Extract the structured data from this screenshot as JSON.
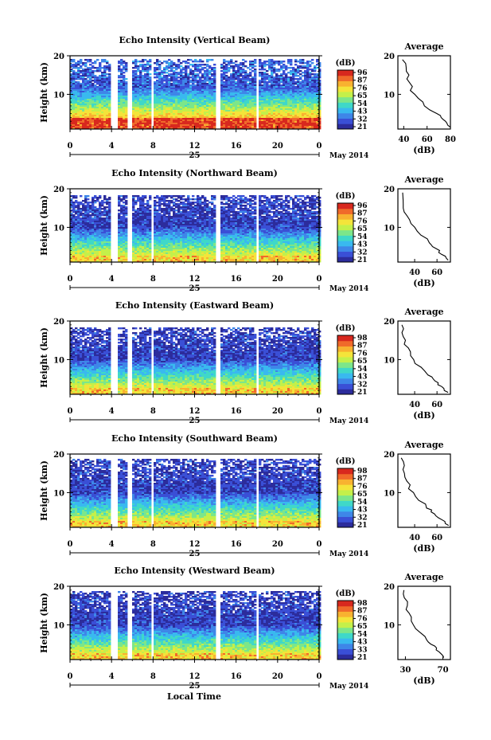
{
  "figure": {
    "x_axis_title": "Local Time",
    "date_label": "May 2014",
    "day_label": "25",
    "height_label": "Height (km)",
    "avg_title": "Average",
    "avg_xlabel": "(dB)",
    "cbar_unit": "(dB)",
    "colormap": [
      "#2c2c9c",
      "#3a4fd6",
      "#3e86e8",
      "#39b9ef",
      "#3fd8c8",
      "#7ce68a",
      "#c4f04a",
      "#f4e43a",
      "#f8b230",
      "#f06a2a",
      "#d8281e"
    ]
  },
  "chart_data": [
    {
      "type": "heatmap",
      "title": "Echo Intensity (Vertical Beam)",
      "xlabel": "Local Time",
      "ylabel": "Height (km)",
      "x_ticks": [
        "0",
        "4",
        "8",
        "12",
        "16",
        "20",
        "0"
      ],
      "xlim": [
        0,
        24
      ],
      "y_ticks": [
        "20",
        "10"
      ],
      "ylim": [
        1,
        20
      ],
      "colorbar": {
        "label": "(dB)",
        "ticks": [
          "96",
          "87",
          "76",
          "65",
          "54",
          "43",
          "32",
          "21"
        ],
        "range": [
          21,
          96
        ]
      },
      "gaps_hours": [
        [
          3.9,
          4.4
        ],
        [
          5.4,
          5.8
        ],
        [
          7.6,
          8.0
        ],
        [
          13.9,
          14.3
        ],
        [
          17.8,
          18.1
        ]
      ],
      "top_km": 19.3,
      "average_profile": {
        "xlim": [
          35,
          80
        ],
        "x_ticks": [
          "40",
          "60",
          "80"
        ],
        "xlabel": "(dB)",
        "y_ticks": [
          "20",
          "10"
        ],
        "height": [
          1.5,
          2,
          2.5,
          3,
          3.5,
          4,
          4.5,
          5,
          5.5,
          6,
          7,
          8,
          9,
          10,
          11,
          12,
          13,
          14,
          15,
          16,
          17,
          18,
          19
        ],
        "db": [
          80,
          78,
          77,
          76,
          73,
          71,
          70,
          67,
          64,
          62,
          58,
          55,
          52,
          49,
          47,
          46,
          45,
          44,
          45,
          42,
          43,
          41,
          40
        ]
      }
    },
    {
      "type": "heatmap",
      "title": "Echo Intensity (Northward Beam)",
      "xlabel": "Local Time",
      "ylabel": "Height (km)",
      "x_ticks": [
        "0",
        "4",
        "8",
        "12",
        "16",
        "20",
        "0"
      ],
      "xlim": [
        0,
        24
      ],
      "y_ticks": [
        "20",
        "10"
      ],
      "ylim": [
        1,
        20
      ],
      "colorbar": {
        "label": "(dB)",
        "ticks": [
          "96",
          "87",
          "76",
          "65",
          "54",
          "43",
          "32",
          "21"
        ],
        "range": [
          21,
          96
        ]
      },
      "gaps_hours": [
        [
          3.9,
          4.4
        ],
        [
          5.4,
          5.8
        ],
        [
          7.6,
          8.0
        ],
        [
          13.9,
          14.3
        ],
        [
          17.8,
          18.1
        ]
      ],
      "top_km": 18.5,
      "average_profile": {
        "xlim": [
          25,
          72
        ],
        "x_ticks": [
          "40",
          "60"
        ],
        "xlabel": "(dB)",
        "y_ticks": [
          "20",
          "10"
        ],
        "height": [
          1.5,
          2,
          2.5,
          3,
          3.5,
          4,
          4.5,
          5,
          5.5,
          6,
          7,
          8,
          9,
          10,
          11,
          12,
          13,
          14,
          15,
          16,
          17,
          18,
          19
        ],
        "db": [
          70,
          68,
          67,
          65,
          63,
          61,
          59,
          57,
          55,
          53,
          50,
          46,
          42,
          39,
          36,
          34,
          33,
          31,
          30,
          30,
          29,
          28,
          28
        ]
      }
    },
    {
      "type": "heatmap",
      "title": "Echo Intensity (Eastward Beam)",
      "xlabel": "Local Time",
      "ylabel": "Height (km)",
      "x_ticks": [
        "0",
        "4",
        "8",
        "12",
        "16",
        "20",
        "0"
      ],
      "xlim": [
        0,
        24
      ],
      "y_ticks": [
        "20",
        "10"
      ],
      "ylim": [
        1,
        20
      ],
      "colorbar": {
        "label": "(dB)",
        "ticks": [
          "98",
          "87",
          "76",
          "65",
          "54",
          "43",
          "32",
          "21"
        ],
        "range": [
          21,
          98
        ]
      },
      "gaps_hours": [
        [
          3.9,
          4.4
        ],
        [
          5.4,
          5.8
        ],
        [
          7.6,
          8.0
        ],
        [
          13.9,
          14.3
        ],
        [
          17.8,
          18.1
        ]
      ],
      "top_km": 18.5,
      "average_profile": {
        "xlim": [
          25,
          72
        ],
        "x_ticks": [
          "40",
          "60"
        ],
        "xlabel": "(dB)",
        "y_ticks": [
          "20",
          "10"
        ],
        "height": [
          1.5,
          2,
          2.5,
          3,
          3.5,
          4,
          4.5,
          5,
          5.5,
          6,
          7,
          8,
          9,
          10,
          11,
          12,
          13,
          14,
          15,
          16,
          17,
          18,
          19
        ],
        "db": [
          70,
          68,
          66,
          64,
          62,
          60,
          58,
          56,
          54,
          52,
          49,
          45,
          41,
          38,
          36,
          35,
          33,
          32,
          31,
          31,
          30,
          29,
          28
        ]
      }
    },
    {
      "type": "heatmap",
      "title": "Echo Intensity (Southward Beam)",
      "xlabel": "Local Time",
      "ylabel": "Height (km)",
      "x_ticks": [
        "0",
        "4",
        "8",
        "12",
        "16",
        "20",
        "0"
      ],
      "xlim": [
        0,
        24
      ],
      "y_ticks": [
        "20",
        "10"
      ],
      "ylim": [
        1,
        20
      ],
      "colorbar": {
        "label": "(dB)",
        "ticks": [
          "98",
          "87",
          "76",
          "65",
          "54",
          "43",
          "32",
          "21"
        ],
        "range": [
          21,
          98
        ]
      },
      "gaps_hours": [
        [
          3.9,
          4.4
        ],
        [
          5.4,
          5.8
        ],
        [
          7.6,
          8.0
        ],
        [
          13.9,
          14.3
        ],
        [
          17.8,
          18.1
        ]
      ],
      "top_km": 19,
      "average_profile": {
        "xlim": [
          25,
          72
        ],
        "x_ticks": [
          "40",
          "60"
        ],
        "xlabel": "(dB)",
        "y_ticks": [
          "20",
          "10"
        ],
        "height": [
          1.5,
          2,
          2.5,
          3,
          3.5,
          4,
          4.5,
          5,
          5.5,
          6,
          7,
          8,
          9,
          10,
          11,
          12,
          13,
          14,
          15,
          16,
          17,
          18,
          19
        ],
        "db": [
          70,
          68,
          66,
          64,
          62,
          60,
          58,
          56,
          54,
          52,
          49,
          45,
          41,
          38,
          36,
          35,
          33,
          32,
          31,
          31,
          30,
          29,
          28
        ]
      }
    },
    {
      "type": "heatmap",
      "title": "Echo Intensity (Westward Beam)",
      "xlabel": "Local Time",
      "ylabel": "Height (km)",
      "x_ticks": [
        "0",
        "4",
        "8",
        "12",
        "16",
        "20",
        "0"
      ],
      "xlim": [
        0,
        24
      ],
      "y_ticks": [
        "20",
        "10"
      ],
      "ylim": [
        1,
        20
      ],
      "colorbar": {
        "label": "(dB)",
        "ticks": [
          "98",
          "87",
          "76",
          "65",
          "54",
          "43",
          "33",
          "21"
        ],
        "range": [
          21,
          98
        ]
      },
      "gaps_hours": [
        [
          3.9,
          4.4
        ],
        [
          5.4,
          5.8
        ],
        [
          7.6,
          8.0
        ],
        [
          13.9,
          14.3
        ],
        [
          17.8,
          18.1
        ]
      ],
      "top_km": 19,
      "average_profile": {
        "xlim": [
          22,
          78
        ],
        "x_ticks": [
          "30",
          "70"
        ],
        "xlabel": "(dB)",
        "y_ticks": [
          "20",
          "10"
        ],
        "height": [
          1.5,
          2,
          2.5,
          3,
          3.5,
          4,
          4.5,
          5,
          5.5,
          6,
          7,
          8,
          9,
          10,
          11,
          12,
          13,
          14,
          15,
          16,
          17,
          18,
          19
        ],
        "db": [
          72,
          70,
          68,
          66,
          64,
          62,
          60,
          58,
          56,
          54,
          50,
          46,
          42,
          39,
          36,
          35,
          33,
          32,
          31,
          31,
          30,
          29,
          28
        ]
      }
    }
  ]
}
